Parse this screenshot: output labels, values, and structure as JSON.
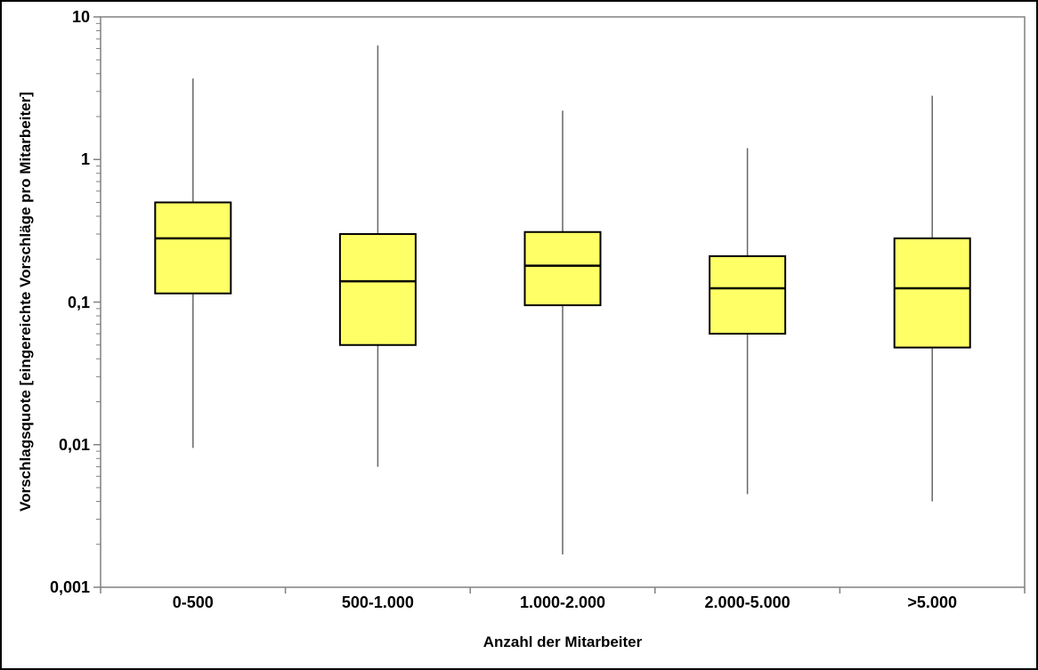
{
  "chart_data": {
    "type": "box",
    "title": "",
    "xlabel": "Anzahl der Mitarbeiter",
    "ylabel": "Vorschlagsquote [eingereichte Vorschläge pro Mitarbeiter]",
    "y_scale": "log",
    "ylim": [
      0.001,
      10
    ],
    "grid": false,
    "legend": null,
    "y_ticks": [
      {
        "value": 10,
        "label": "10"
      },
      {
        "value": 1,
        "label": "1"
      },
      {
        "value": 0.1,
        "label": "0,1"
      },
      {
        "value": 0.01,
        "label": "0,01"
      },
      {
        "value": 0.001,
        "label": "0,001"
      }
    ],
    "categories": [
      "0-500",
      "500-1.000",
      "1.000-2.000",
      "2.000-5.000",
      ">5.000"
    ],
    "boxes": [
      {
        "category": "0-500",
        "whisker_low": 0.0095,
        "q1": 0.115,
        "median": 0.28,
        "q3": 0.5,
        "whisker_high": 3.7
      },
      {
        "category": "500-1.000",
        "whisker_low": 0.007,
        "q1": 0.05,
        "median": 0.14,
        "q3": 0.3,
        "whisker_high": 6.3
      },
      {
        "category": "1.000-2.000",
        "whisker_low": 0.0017,
        "q1": 0.095,
        "median": 0.18,
        "q3": 0.31,
        "whisker_high": 2.2
      },
      {
        "category": "2.000-5.000",
        "whisker_low": 0.0045,
        "q1": 0.06,
        "median": 0.125,
        "q3": 0.21,
        "whisker_high": 1.2
      },
      {
        "category": ">5.000",
        "whisker_low": 0.004,
        "q1": 0.048,
        "median": 0.125,
        "q3": 0.28,
        "whisker_high": 2.8
      }
    ],
    "colors": {
      "box_fill": "#FFFF66",
      "box_border": "#000000",
      "median": "#000000",
      "whisker": "#666666",
      "axis": "#808080",
      "background": "#FFFFFF",
      "text": "#000000"
    }
  }
}
